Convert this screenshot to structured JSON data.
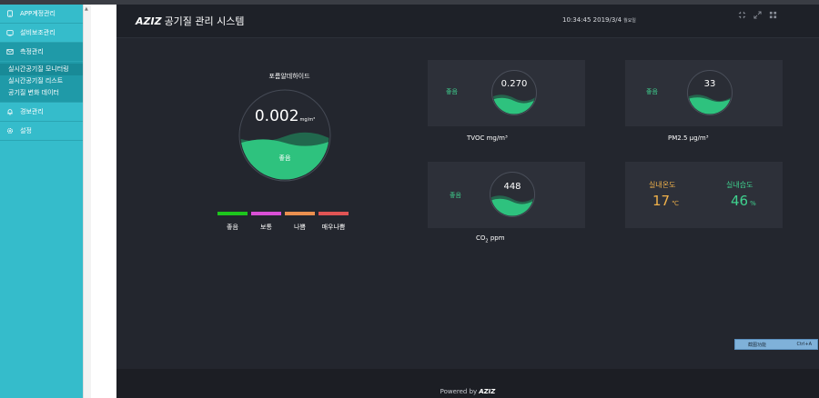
{
  "sidebar": {
    "items": [
      {
        "label": "APP계정관리",
        "icon": "monitor-icon"
      },
      {
        "label": "설비보조관리",
        "icon": "device-icon"
      },
      {
        "label": "측정관리",
        "icon": "envelope-icon"
      },
      {
        "label": "경보관리",
        "icon": "bell-icon"
      },
      {
        "label": "설정",
        "icon": "gear-icon"
      }
    ],
    "submenu": [
      {
        "label": "실시간공기질 모니터링",
        "active": true
      },
      {
        "label": "실시간공기질 리스트",
        "active": false
      },
      {
        "label": "공기질 변화 데이터",
        "active": false
      }
    ]
  },
  "header": {
    "brand": "AZIZ",
    "title": "공기질 관리 시스템",
    "clock": "10:34:45 2019/3/4",
    "weekday": "월요일",
    "icons": [
      "compress-icon",
      "expand-icon",
      "grid-icon"
    ]
  },
  "main_gauge": {
    "title": "포름알데하이드",
    "value": "0.002",
    "unit": "mg/m³",
    "status": "좋음",
    "level": 0.45,
    "color": "#2ec27e"
  },
  "legend": [
    {
      "label": "좋음",
      "color": "#1dc51d"
    },
    {
      "label": "보통",
      "color": "#d94fd6"
    },
    {
      "label": "나쁨",
      "color": "#ea8f4f"
    },
    {
      "label": "매우나쁨",
      "color": "#e05454"
    }
  ],
  "sensors": {
    "tvoc": {
      "value": "0.270",
      "status": "좋음",
      "label": "TVOC mg/m³"
    },
    "pm25": {
      "value": "33",
      "status": "좋음",
      "label": "PM2.5 μg/m³"
    },
    "co2": {
      "value": "448",
      "status": "좋음",
      "label_main": "CO",
      "label_sub": "2",
      "label_tail": " ppm"
    }
  },
  "climate": {
    "temp_title": "실내온도",
    "temp_value": "17",
    "temp_unit": "℃",
    "temp_color": "#f0b14a",
    "humid_title": "실내습도",
    "humid_value": "46",
    "humid_unit": "%",
    "humid_color": "#3fd28f"
  },
  "shortcut": {
    "label": "截图功能",
    "keys": "Ctrl+A"
  },
  "footer": {
    "powered": "Powered by",
    "brand": "AZIZ"
  }
}
